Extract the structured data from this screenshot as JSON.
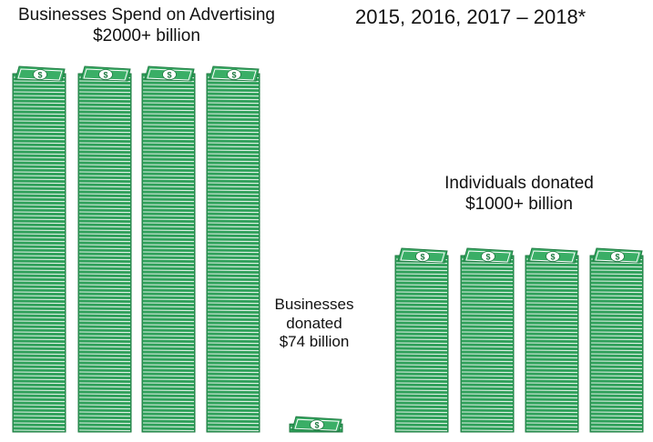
{
  "caption": "2015, 2016, 2017 – 2018*",
  "icon": "dollar-bill-stack-icon",
  "colors": {
    "bill": "#2fa05a",
    "bill_edge": "#1f7a42",
    "bill_line": "#ffffff",
    "top_face": "#3aae66",
    "medallion": "#ffffff"
  },
  "chart_data": {
    "type": "bar",
    "categories": [
      "Businesses Spend on Advertising",
      "Businesses donated",
      "Individuals donated"
    ],
    "series": [
      {
        "values": [
          2000,
          74,
          1000
        ]
      }
    ],
    "units": "billion USD",
    "labels": {
      "advertising": [
        "Businesses Spend on Advertising",
        "$2000+ billion"
      ],
      "business_donations": [
        "Businesses",
        "donated",
        "$74 billion"
      ],
      "individual_donations": [
        "Individuals donated",
        "$1000+ billion"
      ]
    },
    "stacks_per_group": [
      4,
      1,
      4
    ],
    "grid": false,
    "legend": "none"
  }
}
